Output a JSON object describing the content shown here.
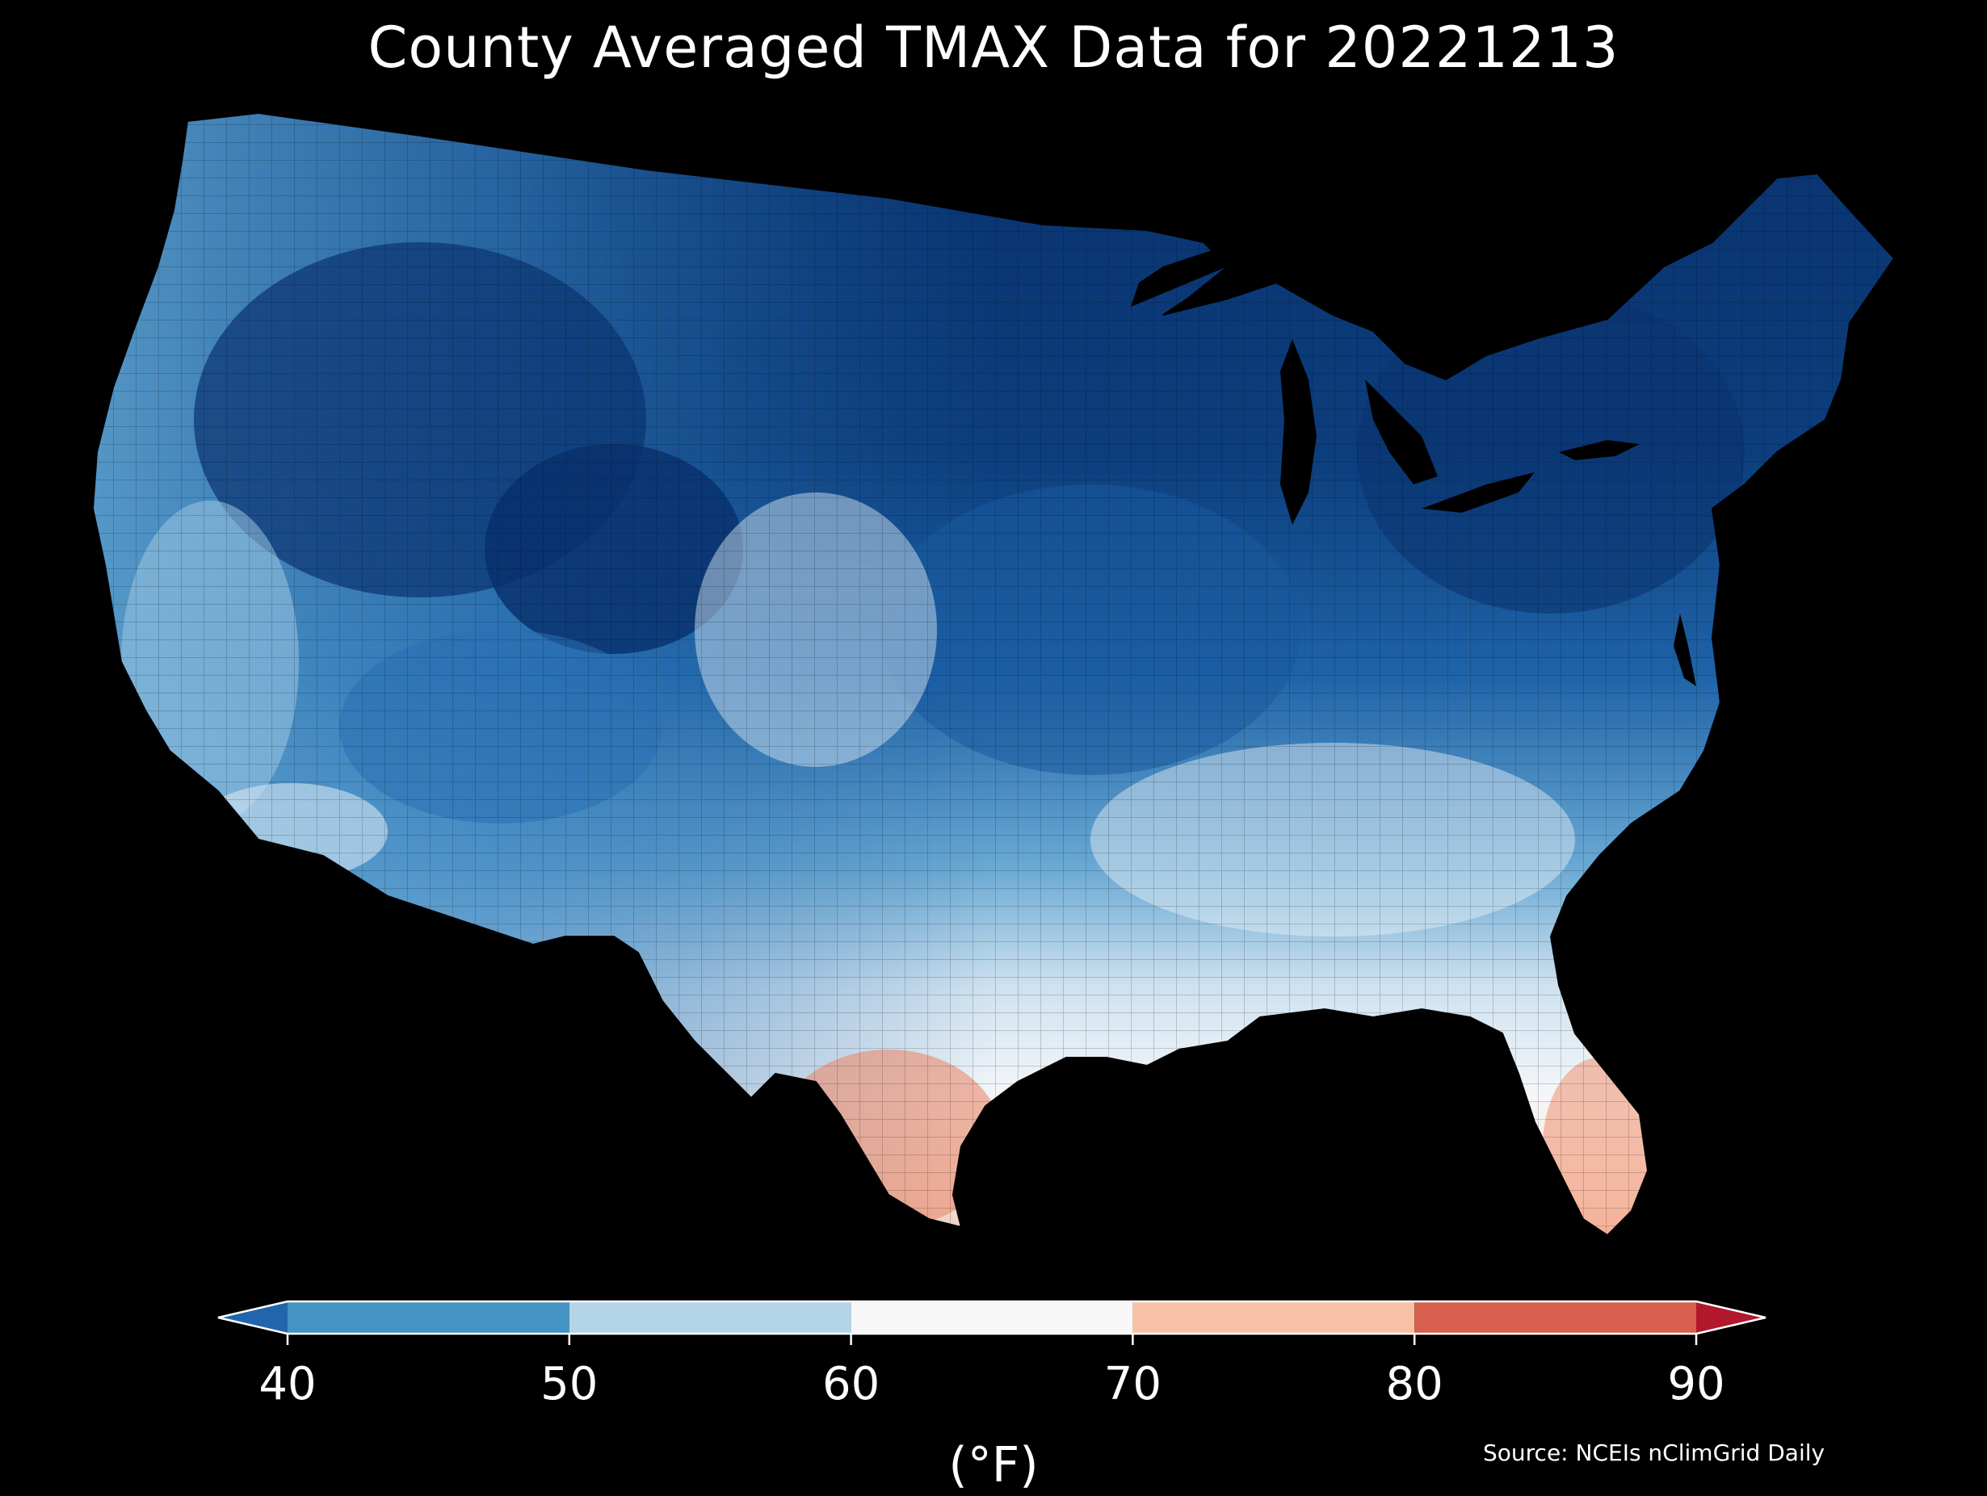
{
  "title": "County Averaged TMAX Data for 20221213",
  "legend": {
    "unit": "(°F)",
    "ticks": [
      "40",
      "50",
      "60",
      "70",
      "80",
      "90"
    ],
    "bins": [
      {
        "min": null,
        "max": 40,
        "color": "#2166ac"
      },
      {
        "min": 40,
        "max": 50,
        "color": "#4393c3"
      },
      {
        "min": 50,
        "max": 60,
        "color": "#b4d4e8"
      },
      {
        "min": 60,
        "max": 70,
        "color": "#f7f7f7"
      },
      {
        "min": 70,
        "max": 80,
        "color": "#f8c1a5"
      },
      {
        "min": 80,
        "max": 90,
        "color": "#d6604d"
      },
      {
        "min": 90,
        "max": null,
        "color": "#b2182b"
      }
    ]
  },
  "source": "Source: NCEIs nClimGrid Daily",
  "map": {
    "region": "contiguous-united-states",
    "palette": {
      "deep_cold": "#08306b",
      "cold": "#1a5a9e",
      "cool": "#3a83c0",
      "mild_cool": "#8ec0df",
      "neutral": "#eef3f8",
      "warm": "#f7c7ac",
      "hot": "#ef8f6f"
    }
  }
}
